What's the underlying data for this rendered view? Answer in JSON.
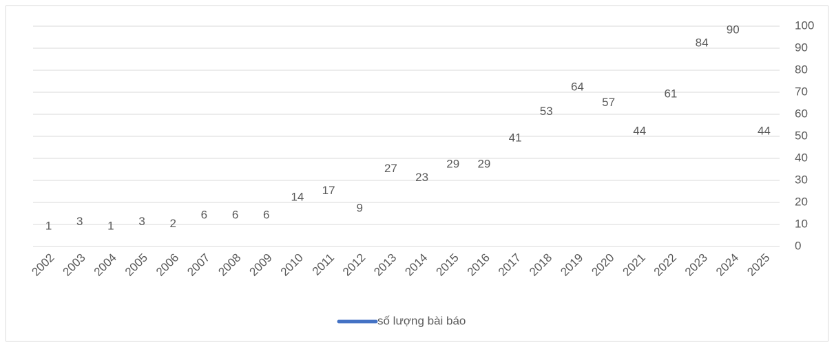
{
  "chart_data": {
    "type": "line",
    "categories": [
      "2002",
      "2003",
      "2004",
      "2005",
      "2006",
      "2007",
      "2008",
      "2009",
      "2010",
      "2011",
      "2012",
      "2013",
      "2014",
      "2015",
      "2016",
      "2017",
      "2018",
      "2019",
      "2020",
      "2021",
      "2022",
      "2023",
      "2024",
      "2025"
    ],
    "series": [
      {
        "name": "số lượng bài báo",
        "color": "#4472c4",
        "values": [
          1,
          3,
          1,
          3,
          2,
          6,
          6,
          6,
          14,
          17,
          9,
          27,
          23,
          29,
          29,
          41,
          53,
          64,
          57,
          44,
          61,
          84,
          90,
          44
        ]
      }
    ],
    "ylim": [
      0,
      100
    ],
    "yticks": [
      0,
      10,
      20,
      30,
      40,
      50,
      60,
      70,
      80,
      90,
      100
    ],
    "y_axis_side": "right",
    "grid": true,
    "data_labels": true,
    "legend": "bottom"
  }
}
